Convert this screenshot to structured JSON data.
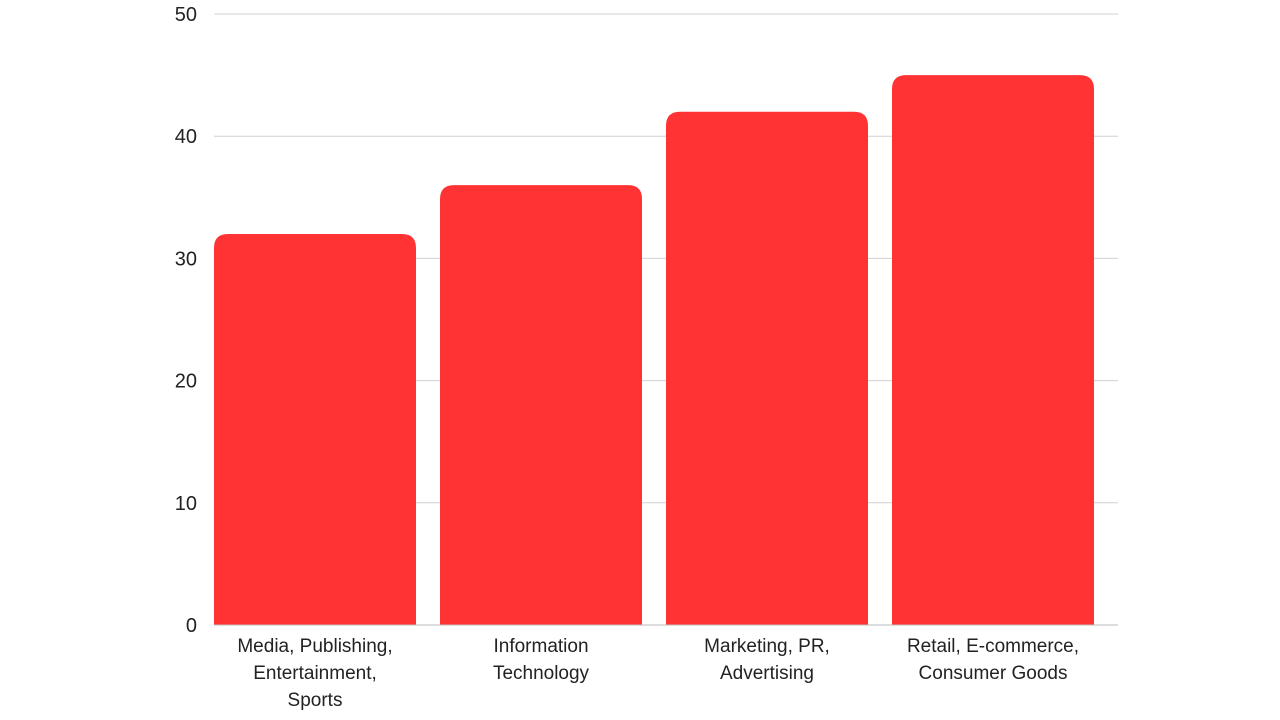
{
  "chart_data": {
    "type": "bar",
    "categories": [
      [
        "Media, Publishing,",
        "Entertainment,",
        "Sports"
      ],
      [
        "Information",
        "Technology"
      ],
      [
        "Marketing, PR,",
        "Advertising"
      ],
      [
        "Retail, E-commerce,",
        "Consumer Goods"
      ]
    ],
    "values": [
      32,
      36,
      42,
      45
    ],
    "ylim": [
      0,
      50
    ],
    "yticks": [
      "0",
      "10",
      "20",
      "30",
      "40",
      "50"
    ],
    "grid": true,
    "legend": "none",
    "bar_color": "#ff3333",
    "title": "",
    "xlabel": "",
    "ylabel": ""
  }
}
